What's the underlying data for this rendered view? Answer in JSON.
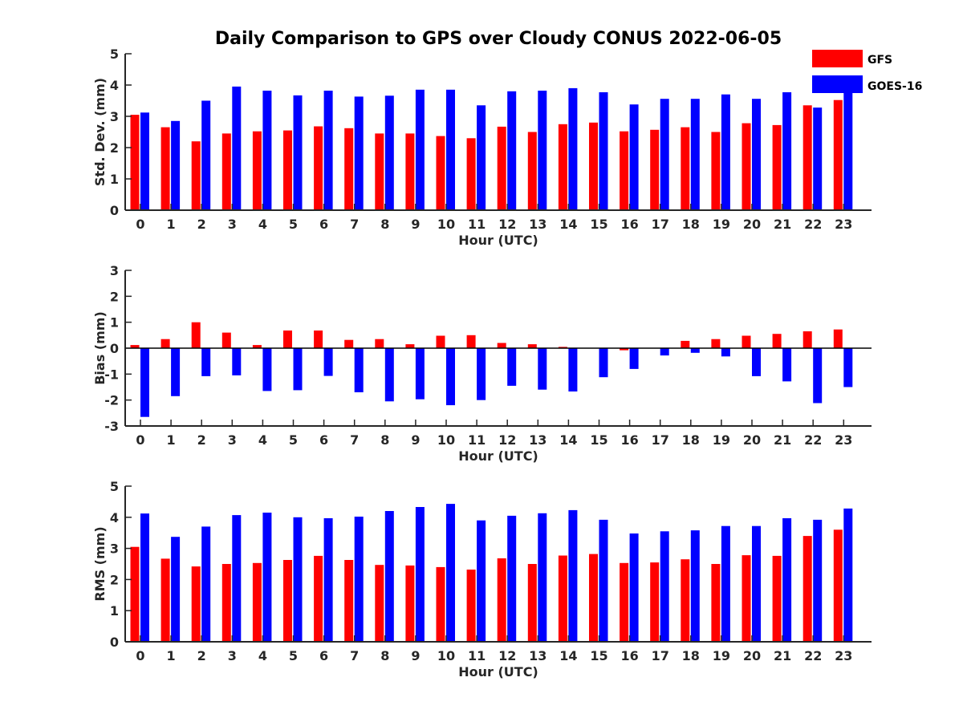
{
  "title": "Daily Comparison to GPS over Cloudy CONUS 2022-06-05",
  "legend": [
    {
      "label": "GFS",
      "color": "#ff0000"
    },
    {
      "label": "GOES-16",
      "color": "#0000ff"
    }
  ],
  "chart_data": [
    {
      "type": "bar",
      "title": "Daily Comparison to GPS over Cloudy CONUS 2022-06-05",
      "xlabel": "Hour (UTC)",
      "ylabel": "Std. Dev. (mm)",
      "ylim": [
        0,
        5
      ],
      "yticks": [
        0,
        1,
        2,
        3,
        4,
        5
      ],
      "categories": [
        "0",
        "1",
        "2",
        "3",
        "4",
        "5",
        "6",
        "7",
        "8",
        "9",
        "10",
        "11",
        "12",
        "13",
        "14",
        "15",
        "16",
        "17",
        "18",
        "19",
        "20",
        "21",
        "22",
        "23"
      ],
      "series": [
        {
          "name": "GFS",
          "color": "#ff0000",
          "values": [
            3.05,
            2.65,
            2.2,
            2.45,
            2.52,
            2.55,
            2.68,
            2.62,
            2.45,
            2.45,
            2.37,
            2.3,
            2.67,
            2.5,
            2.75,
            2.8,
            2.52,
            2.57,
            2.65,
            2.5,
            2.78,
            2.72,
            3.35,
            3.52
          ]
        },
        {
          "name": "GOES-16",
          "color": "#0000ff",
          "values": [
            3.12,
            2.85,
            3.5,
            3.95,
            3.82,
            3.67,
            3.82,
            3.63,
            3.66,
            3.85,
            3.85,
            3.35,
            3.8,
            3.82,
            3.9,
            3.77,
            3.38,
            3.56,
            3.56,
            3.7,
            3.56,
            3.77,
            3.28,
            4.0
          ]
        }
      ]
    },
    {
      "type": "bar",
      "xlabel": "Hour (UTC)",
      "ylabel": "Bias (mm)",
      "ylim": [
        -3,
        3
      ],
      "yticks": [
        -3,
        -2,
        -1,
        0,
        1,
        2,
        3
      ],
      "categories": [
        "0",
        "1",
        "2",
        "3",
        "4",
        "5",
        "6",
        "7",
        "8",
        "9",
        "10",
        "11",
        "12",
        "13",
        "14",
        "15",
        "16",
        "17",
        "18",
        "19",
        "20",
        "21",
        "22",
        "23"
      ],
      "series": [
        {
          "name": "GFS",
          "color": "#ff0000",
          "values": [
            0.12,
            0.35,
            1.0,
            0.6,
            0.12,
            0.68,
            0.68,
            0.32,
            0.35,
            0.15,
            0.48,
            0.5,
            0.2,
            0.15,
            0.05,
            0.0,
            -0.08,
            0.0,
            0.28,
            0.35,
            0.48,
            0.55,
            0.65,
            0.72
          ]
        },
        {
          "name": "GOES-16",
          "color": "#0000ff",
          "values": [
            -2.65,
            -1.85,
            -1.08,
            -1.05,
            -1.65,
            -1.62,
            -1.07,
            -1.7,
            -2.05,
            -1.97,
            -2.2,
            -2.0,
            -1.45,
            -1.6,
            -1.67,
            -1.12,
            -0.8,
            -0.28,
            -0.18,
            -0.32,
            -1.08,
            -1.28,
            -2.12,
            -1.5
          ]
        }
      ]
    },
    {
      "type": "bar",
      "xlabel": "Hour (UTC)",
      "ylabel": "RMS (mm)",
      "ylim": [
        0,
        5
      ],
      "yticks": [
        0,
        1,
        2,
        3,
        4,
        5
      ],
      "categories": [
        "0",
        "1",
        "2",
        "3",
        "4",
        "5",
        "6",
        "7",
        "8",
        "9",
        "10",
        "11",
        "12",
        "13",
        "14",
        "15",
        "16",
        "17",
        "18",
        "19",
        "20",
        "21",
        "22",
        "23"
      ],
      "series": [
        {
          "name": "GFS",
          "color": "#ff0000",
          "values": [
            3.05,
            2.67,
            2.42,
            2.5,
            2.53,
            2.63,
            2.76,
            2.63,
            2.47,
            2.45,
            2.4,
            2.32,
            2.68,
            2.5,
            2.77,
            2.82,
            2.53,
            2.55,
            2.65,
            2.5,
            2.78,
            2.76,
            3.4,
            3.6
          ]
        },
        {
          "name": "GOES-16",
          "color": "#0000ff",
          "values": [
            4.12,
            3.37,
            3.7,
            4.07,
            4.15,
            4.0,
            3.97,
            4.02,
            4.2,
            4.33,
            4.43,
            3.9,
            4.05,
            4.13,
            4.23,
            3.92,
            3.48,
            3.55,
            3.58,
            3.72,
            3.72,
            3.97,
            3.92,
            4.28
          ]
        }
      ]
    }
  ]
}
